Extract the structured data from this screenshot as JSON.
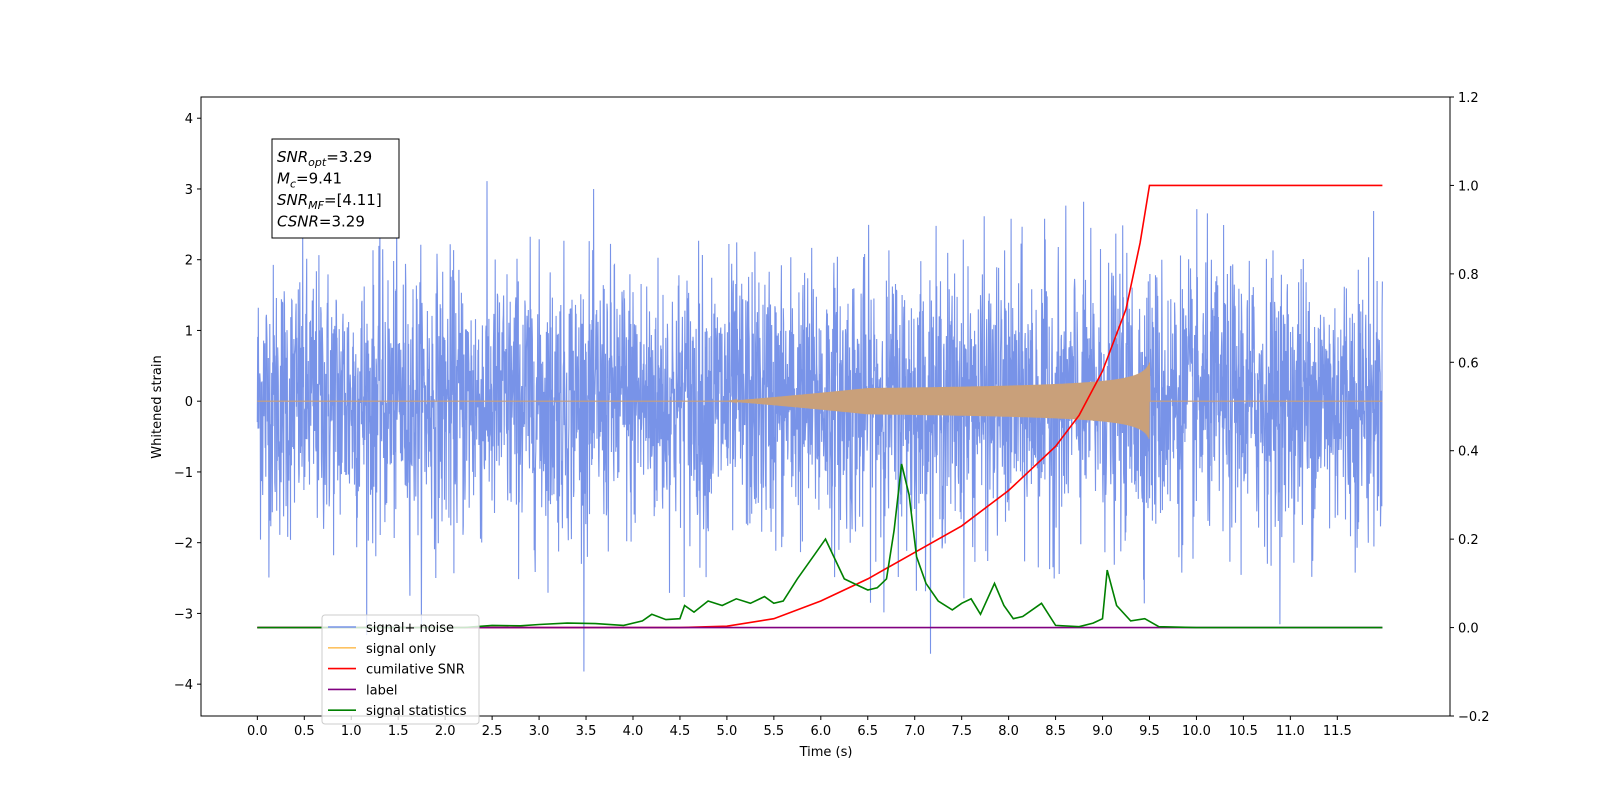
{
  "chart_data": {
    "type": "line",
    "title": "",
    "xlabel": "Time (s)",
    "ylabel": "Whitened strain",
    "xlim": [
      -0.6,
      12.7
    ],
    "ylim": [
      -4.45,
      4.3
    ],
    "y2lim": [
      -0.2,
      1.2
    ],
    "x_ticks": [
      0.0,
      0.5,
      1.0,
      1.5,
      2.0,
      2.5,
      3.0,
      3.5,
      4.0,
      4.5,
      5.0,
      5.5,
      6.0,
      6.5,
      7.0,
      7.5,
      8.0,
      8.5,
      9.0,
      9.5,
      10.0,
      10.5,
      11.0,
      11.5
    ],
    "x_tick_labels": [
      "0.0",
      "0.5",
      "1.0",
      "1.5",
      "2.0",
      "2.5",
      "3.0",
      "3.5",
      "4.0",
      "4.5",
      "5.0",
      "5.5",
      "6.0",
      "6.5",
      "7.0",
      "7.5",
      "8.0",
      "8.5",
      "9.0",
      "9.5",
      "10.0",
      "10.5",
      "11.0",
      "11.5"
    ],
    "y_ticks": [
      -4,
      -3,
      -2,
      -1,
      0,
      1,
      2,
      3,
      4
    ],
    "y_tick_labels": [
      "−4",
      "−3",
      "−2",
      "−1",
      "0",
      "1",
      "2",
      "3",
      "4"
    ],
    "y2_ticks": [
      -0.2,
      0.0,
      0.2,
      0.4,
      0.6,
      0.8,
      1.0,
      1.2
    ],
    "y2_tick_labels": [
      "−0.2",
      "0.0",
      "0.2",
      "0.4",
      "0.6",
      "0.8",
      "1.0",
      "1.2"
    ],
    "grid": false,
    "legend_placement": "lower-left",
    "info_box": {
      "lines": [
        {
          "base": "SNR",
          "sub": "opt",
          "rest": "=3.29"
        },
        {
          "base": "M",
          "sub": "c",
          "rest": "=9.41"
        },
        {
          "base": "SNR",
          "sub": "MF",
          "rest": "=[4.11]"
        },
        {
          "base": "CSNR",
          "sub": "",
          "rest": "=3.29"
        }
      ]
    },
    "series": [
      {
        "name": "signal+ noise",
        "color": "#7893e8",
        "axis": "left",
        "kind": "noise",
        "x_range": [
          0.0,
          11.98
        ],
        "envelope": [
          -4.1,
          3.92
        ]
      },
      {
        "name": "signal only",
        "color": "#fdc262",
        "axis": "left",
        "kind": "chirp",
        "x_range": [
          0.0,
          11.98
        ],
        "merger_time": 9.5,
        "peak_amplitude": 0.55
      },
      {
        "name": "cumilative SNR",
        "color": "#ff0000",
        "axis": "right",
        "x": [
          0.0,
          4.5,
          5.0,
          5.5,
          6.0,
          6.5,
          7.0,
          7.5,
          8.0,
          8.5,
          8.75,
          9.0,
          9.25,
          9.4,
          9.5,
          11.98
        ],
        "values": [
          0.0,
          0.0,
          0.003,
          0.02,
          0.06,
          0.11,
          0.17,
          0.23,
          0.31,
          0.41,
          0.48,
          0.58,
          0.72,
          0.87,
          1.0,
          1.0
        ]
      },
      {
        "name": "label",
        "color": "#800080",
        "axis": "right",
        "x": [
          0.0,
          11.98
        ],
        "values": [
          0.0,
          0.0
        ]
      },
      {
        "name": "signal statistics",
        "color": "#008000",
        "axis": "right",
        "x": [
          0.0,
          2.2,
          2.5,
          2.8,
          3.0,
          3.3,
          3.6,
          3.9,
          4.1,
          4.2,
          4.35,
          4.5,
          4.55,
          4.65,
          4.8,
          4.95,
          5.1,
          5.25,
          5.4,
          5.5,
          5.6,
          5.75,
          5.85,
          5.95,
          6.05,
          6.15,
          6.25,
          6.4,
          6.5,
          6.6,
          6.7,
          6.78,
          6.86,
          6.94,
          7.02,
          7.12,
          7.25,
          7.4,
          7.5,
          7.6,
          7.7,
          7.85,
          7.95,
          8.05,
          8.15,
          8.35,
          8.5,
          8.75,
          8.9,
          9.0,
          9.05,
          9.15,
          9.3,
          9.45,
          9.6,
          10.0,
          11.98
        ],
        "values": [
          0.0,
          0.0,
          0.005,
          0.004,
          0.007,
          0.01,
          0.009,
          0.005,
          0.015,
          0.03,
          0.018,
          0.02,
          0.05,
          0.035,
          0.06,
          0.05,
          0.065,
          0.055,
          0.07,
          0.055,
          0.06,
          0.11,
          0.14,
          0.17,
          0.2,
          0.155,
          0.11,
          0.095,
          0.085,
          0.09,
          0.11,
          0.22,
          0.37,
          0.3,
          0.16,
          0.1,
          0.06,
          0.04,
          0.055,
          0.065,
          0.03,
          0.1,
          0.05,
          0.02,
          0.025,
          0.055,
          0.005,
          0.002,
          0.01,
          0.02,
          0.13,
          0.05,
          0.015,
          0.02,
          0.002,
          0.0,
          0.0
        ]
      }
    ]
  }
}
